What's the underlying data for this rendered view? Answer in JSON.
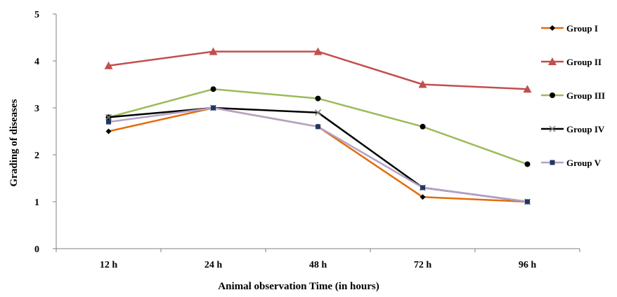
{
  "chart_data": {
    "type": "line",
    "title": "",
    "xlabel": "Animal observation Time (in hours)",
    "ylabel": "Grading of diseases",
    "categories": [
      "12 h",
      "24 h",
      "48 h",
      "72 h",
      "96 h"
    ],
    "ylim": [
      0,
      5
    ],
    "yticks": [
      "0",
      "1",
      "2",
      "3",
      "4",
      "5"
    ],
    "grid": false,
    "legend_position": "right",
    "series": [
      {
        "name": "Group I",
        "color": "#E46C0A",
        "marker_color": "#000000",
        "marker": "diamond",
        "values": [
          2.5,
          3.0,
          2.6,
          1.1,
          1.0
        ]
      },
      {
        "name": "Group II",
        "color": "#C0504D",
        "marker_color": "#C0504D",
        "marker": "triangle",
        "values": [
          3.9,
          4.2,
          4.2,
          3.5,
          3.4
        ]
      },
      {
        "name": "Group III",
        "color": "#9BBB59",
        "marker_color": "#000000",
        "marker": "circle",
        "values": [
          2.8,
          3.4,
          3.2,
          2.6,
          1.8
        ]
      },
      {
        "name": "Group IV",
        "color": "#000000",
        "marker_color": "#7F7F7F",
        "marker": "x",
        "values": [
          2.8,
          3.0,
          2.9,
          1.3,
          1.0
        ]
      },
      {
        "name": "Group V",
        "color": "#B3A2C7",
        "marker_color": "#1F3864",
        "marker": "square",
        "values": [
          2.7,
          3.0,
          2.6,
          1.3,
          1.0
        ]
      }
    ]
  }
}
